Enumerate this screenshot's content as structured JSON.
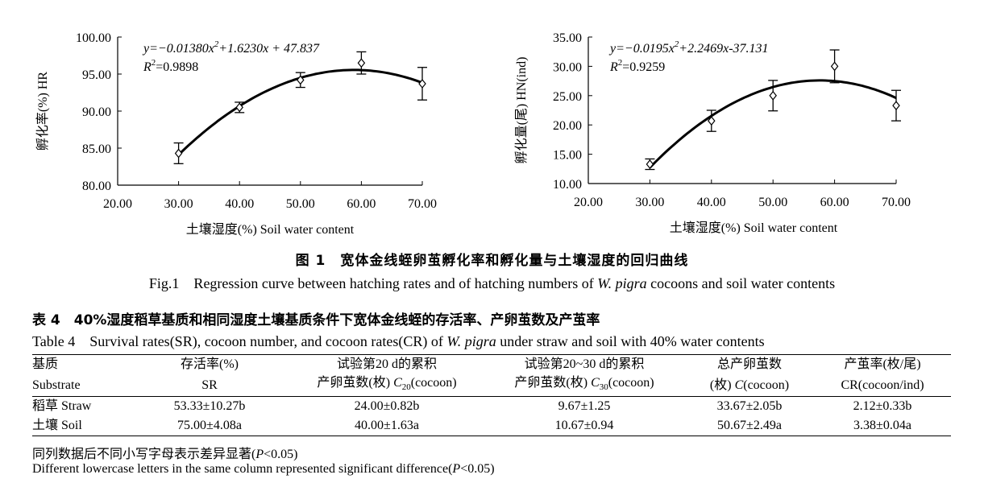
{
  "chart_data": [
    {
      "type": "scatter",
      "xlabel": "土壤湿度(%) Soil water content",
      "ylabel": "孵化率(%) HR",
      "xlim": [
        20,
        70
      ],
      "ylim": [
        80,
        100
      ],
      "x_ticks": [
        "20.00",
        "30.00",
        "40.00",
        "50.00",
        "60.00",
        "70.00"
      ],
      "y_ticks": [
        "80.00",
        "85.00",
        "90.00",
        "95.00",
        "100.00"
      ],
      "points": [
        {
          "x": 30,
          "y": 84.3,
          "err": 1.4
        },
        {
          "x": 40,
          "y": 90.5,
          "err": 0.7
        },
        {
          "x": 50,
          "y": 94.2,
          "err": 1.0
        },
        {
          "x": 60,
          "y": 96.5,
          "err": 1.5
        },
        {
          "x": 70,
          "y": 93.7,
          "err": 2.2
        }
      ],
      "fit": {
        "a": -0.0138,
        "b": 1.623,
        "c": 47.837
      },
      "equation_parts": [
        "y=−0.01380x",
        "2",
        "+1.6230x + 47.837"
      ],
      "r2_value": "=0.9898"
    },
    {
      "type": "scatter",
      "xlabel": "土壤湿度(%) Soil water content",
      "ylabel": "孵化量(尾) HN(ind)",
      "xlim": [
        20,
        70
      ],
      "ylim": [
        10,
        35
      ],
      "x_ticks": [
        "20.00",
        "30.00",
        "40.00",
        "50.00",
        "60.00",
        "70.00"
      ],
      "y_ticks": [
        "10.00",
        "15.00",
        "20.00",
        "25.00",
        "30.00",
        "35.00"
      ],
      "points": [
        {
          "x": 30,
          "y": 13.3,
          "err": 0.9
        },
        {
          "x": 40,
          "y": 20.7,
          "err": 1.8
        },
        {
          "x": 50,
          "y": 25.0,
          "err": 2.6
        },
        {
          "x": 60,
          "y": 30.0,
          "err": 2.8
        },
        {
          "x": 70,
          "y": 23.3,
          "err": 2.6
        }
      ],
      "fit": {
        "a": -0.0195,
        "b": 2.2469,
        "c": -37.131
      },
      "equation_parts": [
        "y=−0.0195x",
        "2",
        "+2.2469x-37.131"
      ],
      "r2_value": "=0.9259"
    }
  ],
  "figure": {
    "title_cn": "图 1　宽体金线蛭卵茧孵化率和孵化量与土壤湿度的回归曲线",
    "title_en_prefix": "Fig.1　Regression curve between hatching rates and of hatching numbers of ",
    "title_en_species": "W. pigra",
    "title_en_suffix": " cocoons and soil water contents"
  },
  "table": {
    "title_cn": "表 4　40%湿度稻草基质和相同湿度土壤基质条件下宽体金线蛭的存活率、产卵茧数及产茧率",
    "title_en_prefix": "Table 4　Survival rates(SR), cocoon number, and cocoon rates(CR) of ",
    "title_en_species": "W. pigra",
    "title_en_suffix": " under straw and soil with 40% water contents",
    "headers_row1": [
      "基质",
      "存活率(%)",
      "试验第20 d的累积",
      "试验第20~30 d的累积",
      "总产卵茧数",
      "产茧率(枚/尾)"
    ],
    "headers_row2": [
      "Substrate",
      "SR",
      "产卵茧数(枚) ",
      "产卵茧数(枚) ",
      "(枚) ",
      "CR(cocoon/ind)"
    ],
    "header_c20": "C",
    "header_c20_sub": "20",
    "header_c20_tail": "(cocoon)",
    "header_c30": "C",
    "header_c30_sub": "30",
    "header_c30_tail": "(cocoon)",
    "header_c": "C",
    "header_c_tail": "(cocoon)",
    "rows": [
      [
        "稻草 Straw",
        "53.33±10.27b",
        "24.00±0.82b",
        "9.67±1.25",
        "33.67±2.05b",
        "2.12±0.33b"
      ],
      [
        "土壤 Soil",
        "75.00±4.08a",
        "40.00±1.63a",
        "10.67±0.94",
        "50.67±2.49a",
        "3.38±0.04a"
      ]
    ]
  },
  "notes": {
    "cn_prefix": "同列数据后不同小写字母表示差异显著(",
    "cn_p": "P",
    "cn_suffix": "<0.05)",
    "en_prefix": "Different lowercase letters in the same column represented significant difference(",
    "en_p": "P",
    "en_suffix": "<0.05)"
  }
}
